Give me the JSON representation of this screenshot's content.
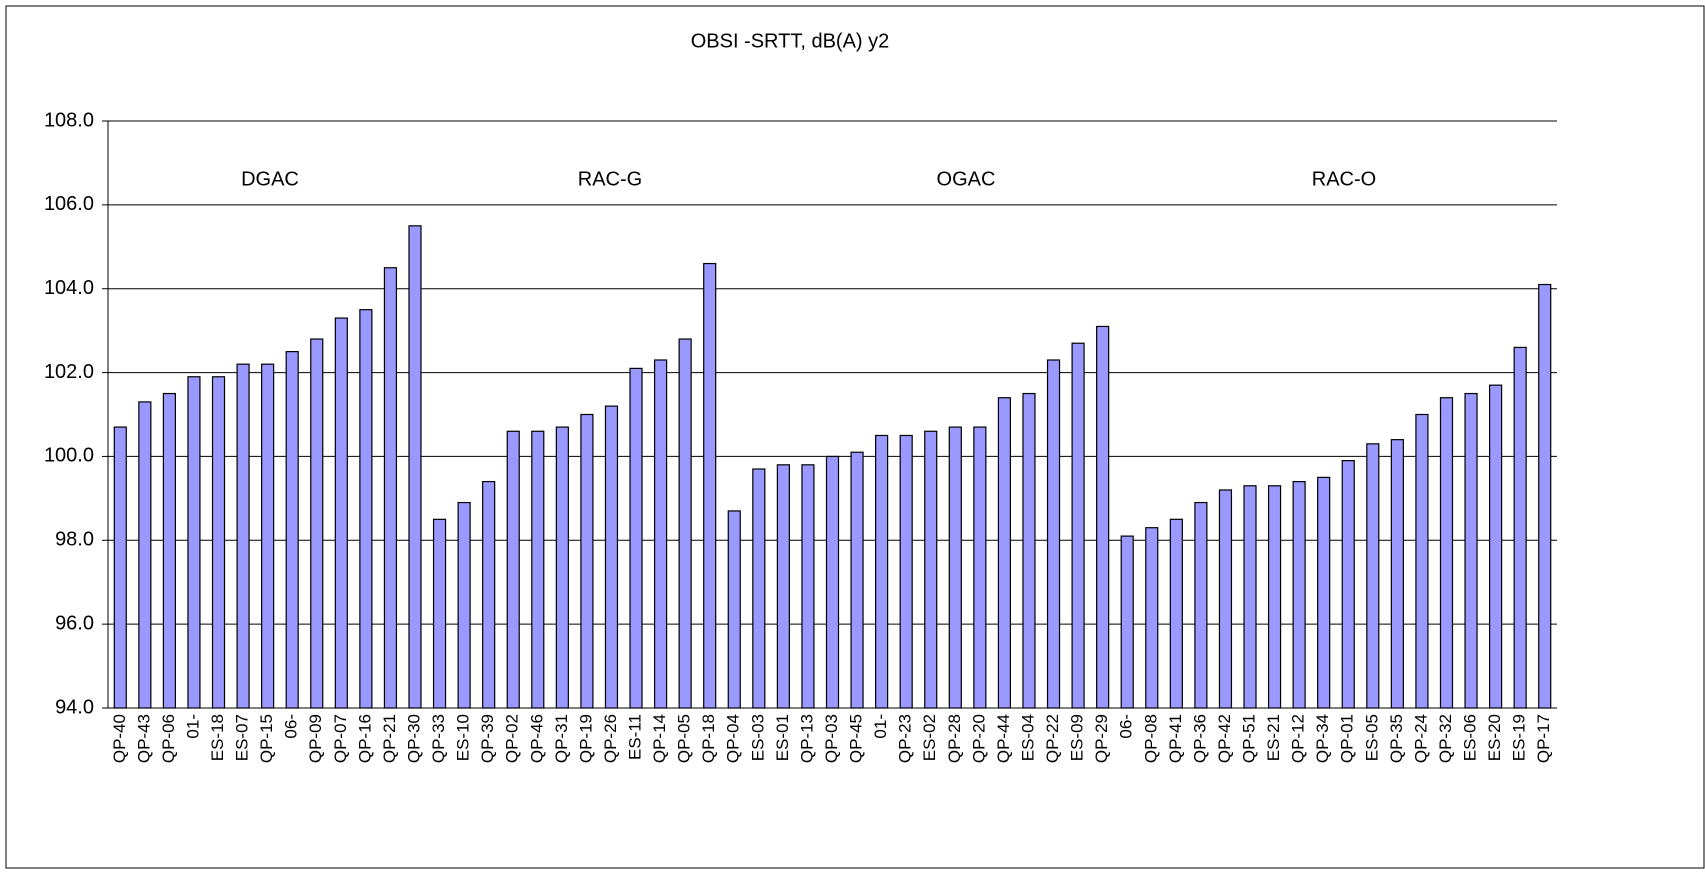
{
  "chart_data": {
    "type": "bar",
    "title": "OBSI -SRTT, dB(A) y2",
    "categories": [
      "QP-40",
      "QP-43",
      "QP-06",
      "01-",
      "ES-18",
      "ES-07",
      "QP-15",
      "06-",
      "QP-09",
      "QP-07",
      "QP-16",
      "QP-21",
      "QP-30",
      "QP-33",
      "ES-10",
      "QP-39",
      "QP-02",
      "QP-46",
      "QP-31",
      "QP-19",
      "QP-26",
      "ES-11",
      "QP-14",
      "QP-05",
      "QP-18",
      "QP-04",
      "ES-03",
      "ES-01",
      "QP-13",
      "QP-03",
      "QP-45",
      "01-",
      "QP-23",
      "ES-02",
      "QP-28",
      "QP-20",
      "QP-44",
      "ES-04",
      "QP-22",
      "ES-09",
      "QP-29",
      "06-",
      "QP-08",
      "QP-41",
      "QP-36",
      "QP-42",
      "QP-51",
      "ES-21",
      "QP-12",
      "QP-34",
      "QP-01",
      "ES-05",
      "QP-35",
      "QP-24",
      "QP-32",
      "ES-06",
      "ES-20",
      "ES-19",
      "QP-17"
    ],
    "values": [
      100.7,
      101.3,
      101.5,
      101.9,
      101.9,
      102.2,
      102.2,
      102.5,
      102.8,
      103.3,
      103.5,
      104.5,
      105.5,
      98.5,
      98.9,
      99.4,
      100.6,
      100.6,
      100.7,
      101.0,
      101.2,
      102.1,
      102.3,
      102.8,
      104.6,
      98.7,
      99.7,
      99.8,
      99.8,
      100.0,
      100.1,
      100.5,
      100.5,
      100.6,
      100.7,
      100.7,
      101.4,
      101.5,
      102.3,
      102.7,
      103.1,
      98.1,
      98.3,
      98.5,
      98.9,
      99.2,
      99.3,
      99.3,
      99.4,
      99.5,
      99.9,
      100.3,
      100.4,
      101.0,
      101.4,
      101.5,
      101.7,
      102.6,
      104.1
    ],
    "color": "#9999ff",
    "ylim": [
      94,
      108
    ],
    "yticks": [
      {
        "value": 94,
        "label": "94.0"
      },
      {
        "value": 96,
        "label": "96.0"
      },
      {
        "value": 98,
        "label": "98.0"
      },
      {
        "value": 100,
        "label": "100.0"
      },
      {
        "value": 102,
        "label": "102.0"
      },
      {
        "value": 104,
        "label": "104.0"
      },
      {
        "value": 106,
        "label": "106.0"
      },
      {
        "value": 108,
        "label": "108.0"
      }
    ],
    "grid": true,
    "annotations": [
      "DGAC",
      "RAC-G",
      "OGAC",
      "RAC-O"
    ]
  }
}
